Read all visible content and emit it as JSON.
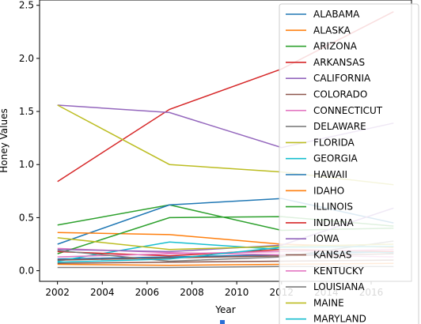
{
  "chart_data": {
    "type": "line",
    "title": "",
    "xlabel": "Year",
    "ylabel": "Honey Values",
    "x": [
      2002,
      2007,
      2012,
      2017
    ],
    "xlim": [
      2001.2,
      2017.8
    ],
    "ylim": [
      -0.1,
      2.55
    ],
    "xticks": [
      "2002",
      "2004",
      "2006",
      "2008",
      "2010",
      "2012",
      "2014",
      "2016"
    ],
    "yticks": [
      "0.0",
      "0.5",
      "1.0",
      "1.5",
      "2.0",
      "2.5"
    ],
    "grid": false,
    "legend_position": "upper-right",
    "series": [
      {
        "name": "ALABAMA",
        "color": "#1f77b4",
        "values": [
          0.11,
          0.13,
          0.15,
          0.18
        ]
      },
      {
        "name": "ALASKA",
        "color": "#ff7f0e",
        "values": [
          0.06,
          0.05,
          0.06,
          0.07
        ]
      },
      {
        "name": "ARIZONA",
        "color": "#2ca02c",
        "values": [
          0.43,
          0.62,
          0.38,
          0.4
        ]
      },
      {
        "name": "ARKANSAS",
        "color": "#d62728",
        "values": [
          0.84,
          1.52,
          1.9,
          2.44
        ]
      },
      {
        "name": "CALIFORNIA",
        "color": "#9467bd",
        "values": [
          1.56,
          1.49,
          1.16,
          1.39
        ]
      },
      {
        "name": "COLORADO",
        "color": "#8c564b",
        "values": [
          0.07,
          0.08,
          0.09,
          0.1
        ]
      },
      {
        "name": "CONNECTICUT",
        "color": "#e377c2",
        "values": [
          0.21,
          0.17,
          0.15,
          0.13
        ]
      },
      {
        "name": "DELAWARE",
        "color": "#7f7f7f",
        "values": [
          0.03,
          0.03,
          0.04,
          0.04
        ]
      },
      {
        "name": "FLORIDA",
        "color": "#bcbd22",
        "values": [
          1.56,
          1.0,
          0.93,
          0.81
        ]
      },
      {
        "name": "GEORGIA",
        "color": "#17becf",
        "values": [
          0.09,
          0.27,
          0.2,
          0.17
        ]
      },
      {
        "name": "HAWAII",
        "color": "#1f77b4",
        "values": [
          0.25,
          0.62,
          0.68,
          0.45
        ]
      },
      {
        "name": "IDAHO",
        "color": "#ff7f0e",
        "values": [
          0.36,
          0.34,
          0.25,
          0.22
        ]
      },
      {
        "name": "ILLINOIS",
        "color": "#2ca02c",
        "values": [
          0.16,
          0.5,
          0.51,
          0.42
        ]
      },
      {
        "name": "INDIANA",
        "color": "#d62728",
        "values": [
          0.18,
          0.14,
          0.2,
          0.18
        ]
      },
      {
        "name": "IOWA",
        "color": "#9467bd",
        "values": [
          0.2,
          0.18,
          0.24,
          0.59
        ]
      },
      {
        "name": "KANSAS",
        "color": "#8c564b",
        "values": [
          0.1,
          0.12,
          0.14,
          0.16
        ]
      },
      {
        "name": "KENTUCKY",
        "color": "#e377c2",
        "values": [
          0.13,
          0.16,
          0.18,
          0.2
        ]
      },
      {
        "name": "LOUISIANA",
        "color": "#7f7f7f",
        "values": [
          0.19,
          0.09,
          0.13,
          0.28
        ]
      },
      {
        "name": "MAINE",
        "color": "#bcbd22",
        "values": [
          0.31,
          0.2,
          0.23,
          0.25
        ]
      },
      {
        "name": "MARYLAND",
        "color": "#17becf",
        "values": [
          0.08,
          0.11,
          0.22,
          0.23
        ]
      }
    ]
  }
}
